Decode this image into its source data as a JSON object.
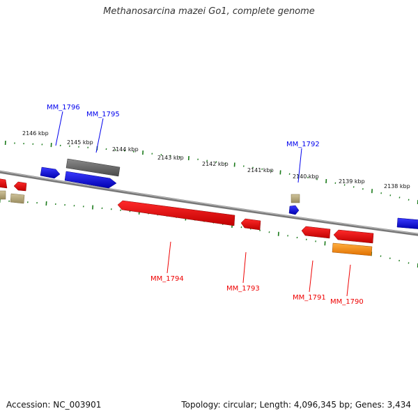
{
  "title": "Methanosarcina mazei Go1, complete genome",
  "footer": {
    "accession": "Accession: NC_003901",
    "summary": "Topology: circular; Length: 4,096,345 bp; Genes: 3,434"
  },
  "colors": {
    "forward_strand_gene": "#0000ee",
    "reverse_strand_gene": "#ee0000",
    "pseudo_gene": "#666666",
    "rna_gene": "#b8a878",
    "highlight_gene": "#ff8800",
    "backbone": "#888888",
    "ticks": "#1a7a1a"
  },
  "ruler": {
    "unit": "kbp",
    "labels": [
      "2146 kbp",
      "2145 kbp",
      "2144 kbp",
      "2143 kbp",
      "2142 kbp",
      "2141 kbp",
      "2140 kbp",
      "2139 kbp",
      "2138 kbp"
    ]
  },
  "genes": [
    {
      "name": "MM_1796",
      "strand": "forward"
    },
    {
      "name": "MM_1795",
      "strand": "forward"
    },
    {
      "name": "MM_1792",
      "strand": "forward"
    },
    {
      "name": "MM_1794",
      "strand": "reverse"
    },
    {
      "name": "MM_1793",
      "strand": "reverse"
    },
    {
      "name": "MM_1791",
      "strand": "reverse"
    },
    {
      "name": "MM_1790",
      "strand": "reverse"
    }
  ]
}
